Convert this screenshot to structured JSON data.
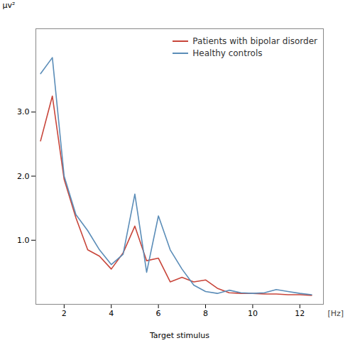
{
  "chart_data": {
    "type": "line",
    "xlabel": "Target stimulus",
    "ylabel": "μv²",
    "annotations": [
      "[Hz]"
    ],
    "x": [
      1.0,
      1.5,
      2.0,
      2.5,
      3.0,
      3.5,
      4.0,
      4.5,
      5.0,
      5.5,
      6.0,
      6.5,
      7.0,
      7.5,
      8.0,
      8.5,
      9.0,
      9.5,
      10.0,
      10.5,
      11.0,
      11.5,
      12.0,
      12.5
    ],
    "series": [
      {
        "name": "Patients with bipolar disorder",
        "color": "#c8453a",
        "values": [
          2.55,
          3.25,
          1.95,
          1.35,
          0.85,
          0.75,
          0.55,
          0.8,
          1.22,
          0.68,
          0.72,
          0.35,
          0.42,
          0.35,
          0.38,
          0.25,
          0.18,
          0.17,
          0.17,
          0.16,
          0.16,
          0.15,
          0.15,
          0.14
        ]
      },
      {
        "name": "Healthy controls",
        "color": "#5b8db8",
        "values": [
          3.6,
          3.85,
          2.0,
          1.4,
          1.15,
          0.85,
          0.62,
          0.78,
          1.72,
          0.5,
          1.38,
          0.85,
          0.55,
          0.3,
          0.2,
          0.17,
          0.22,
          0.18,
          0.17,
          0.18,
          0.23,
          0.2,
          0.17,
          0.15
        ]
      }
    ],
    "xlim": [
      0.8,
      13.0
    ],
    "ylim": [
      0,
      4.3
    ],
    "xticks": [
      2,
      4,
      6,
      8,
      10,
      12
    ],
    "yticks": [
      1,
      2,
      3
    ],
    "legend": "upper right",
    "grid": false
  }
}
